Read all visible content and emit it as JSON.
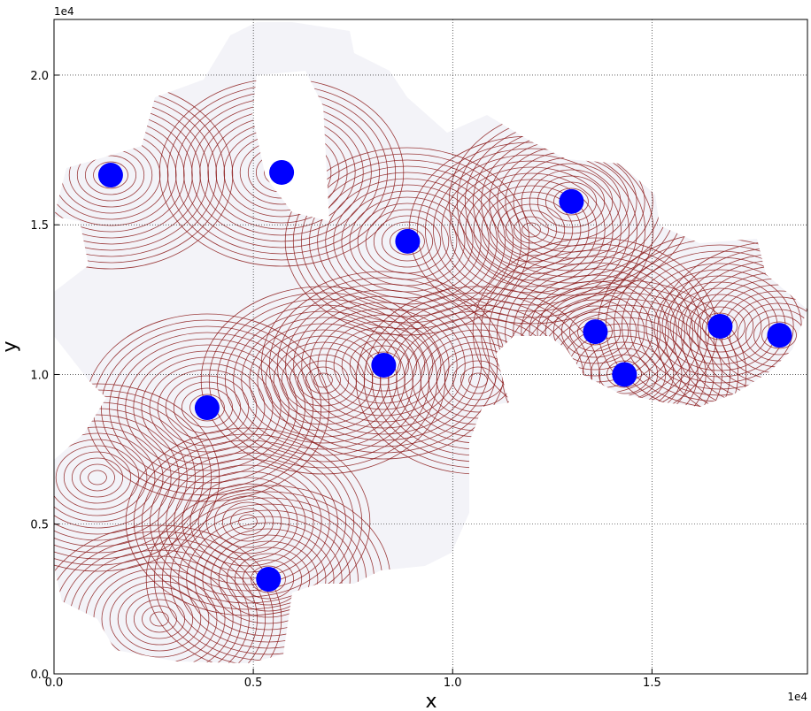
{
  "chart_data": {
    "type": "scatter",
    "x_label": "x",
    "y_label": "y",
    "x_offset_label": "1e4",
    "y_offset_label": "1e4",
    "xlim": [
      0,
      1.89
    ],
    "ylim": [
      0,
      2.186
    ],
    "xticks": [
      {
        "value": 0,
        "label": "0.0"
      },
      0.5,
      {
        "value": 1,
        "label": "1.0"
      },
      1.5
    ],
    "yticks": [
      {
        "value": 0,
        "label": "0.0"
      },
      0.5,
      {
        "value": 1,
        "label": "1.0"
      },
      1.5,
      {
        "value": 2,
        "label": "2.0"
      }
    ],
    "grid": true,
    "color": "#0000ff",
    "x": [
      0.142,
      0.571,
      0.887,
      1.298,
      0.827,
      0.384,
      0.538,
      1.358,
      1.431,
      1.671,
      1.82
    ],
    "values": [
      1.666,
      1.675,
      1.445,
      1.578,
      1.031,
      0.889,
      0.316,
      1.143,
      1.0,
      1.161,
      1.131
    ]
  }
}
